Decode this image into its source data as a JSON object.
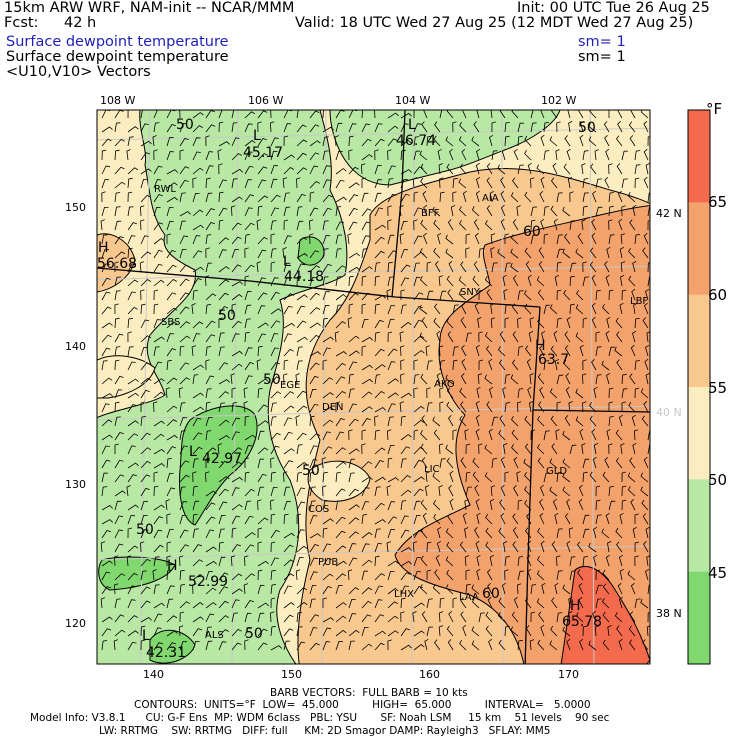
{
  "header": {
    "model": "15km ARW WRF, NAM-init -- NCAR/MMM",
    "fcst_label": "Fcst:",
    "fcst_value": "42 h",
    "init": "Init: 00 UTC Tue 26 Aug 25",
    "valid": "Valid: 18 UTC Wed 27 Aug 25 (12 MDT Wed 27 Aug 25)",
    "field1": "Surface dewpoint temperature",
    "field1_sm": "sm= 1",
    "field2": "Surface dewpoint temperature",
    "field2_sm": "sm= 1",
    "vectors": "<U10,V10> Vectors"
  },
  "top_ticks": [
    "108 W",
    "106 W",
    "104 W",
    "102 W"
  ],
  "left_ticks": [
    "150",
    "140",
    "130",
    "120"
  ],
  "bottom_ticks": [
    "140",
    "150",
    "160",
    "170"
  ],
  "right_ticks": [
    "42 N",
    "40 N",
    "38 N"
  ],
  "colorbar": {
    "unit": "°F",
    "labels": [
      "65",
      "60",
      "55",
      "50",
      "45"
    ],
    "colors": [
      "#f46a4c",
      "#f4a26c",
      "#f8c88f",
      "#fcedc0",
      "#b8e8a4",
      "#80d86e"
    ]
  },
  "map_labels": {
    "contour_values": [
      "50",
      "50",
      "50",
      "50",
      "50",
      "50",
      "60",
      "60",
      "50"
    ],
    "extrema": [
      {
        "mark": "L",
        "value": "45.17"
      },
      {
        "mark": "L",
        "value": "46.74"
      },
      {
        "mark": "H",
        "value": "56.68"
      },
      {
        "mark": "L",
        "value": "44.18"
      },
      {
        "mark": "L",
        "value": "42.97"
      },
      {
        "mark": "H",
        "value": "52.99"
      },
      {
        "mark": "L",
        "value": "42.31"
      },
      {
        "mark": "H",
        "value": "63.7"
      },
      {
        "mark": "H",
        "value": "65.78"
      }
    ],
    "stations": [
      "RWL",
      "BFF",
      "AIA",
      "SNY",
      "SBS",
      "EGE",
      "DEN",
      "AKO",
      "LIC",
      "GLD",
      "COS",
      "PUB",
      "LHX",
      "LAA",
      "ALS",
      "LBF"
    ]
  },
  "footer": {
    "barbs": "BARB VECTORS:  FULL BARB = 10 kts",
    "contours": "CONTOURS:  UNITS=°F  LOW=  45.000          HIGH=  65.000          INTERVAL=   5.0000",
    "model_info": "Model Info: V3.8.1      CU: G-F Ens  MP: WDM 6class   PBL: YSU       SF: Noah LSM     15 km    51 levels    90 sec",
    "physics": "LW: RRTMG    SW: RRTMG   DIFF: full     KM: 2D Smagor DAMP: Rayleigh3   SFLAY: MM5"
  }
}
